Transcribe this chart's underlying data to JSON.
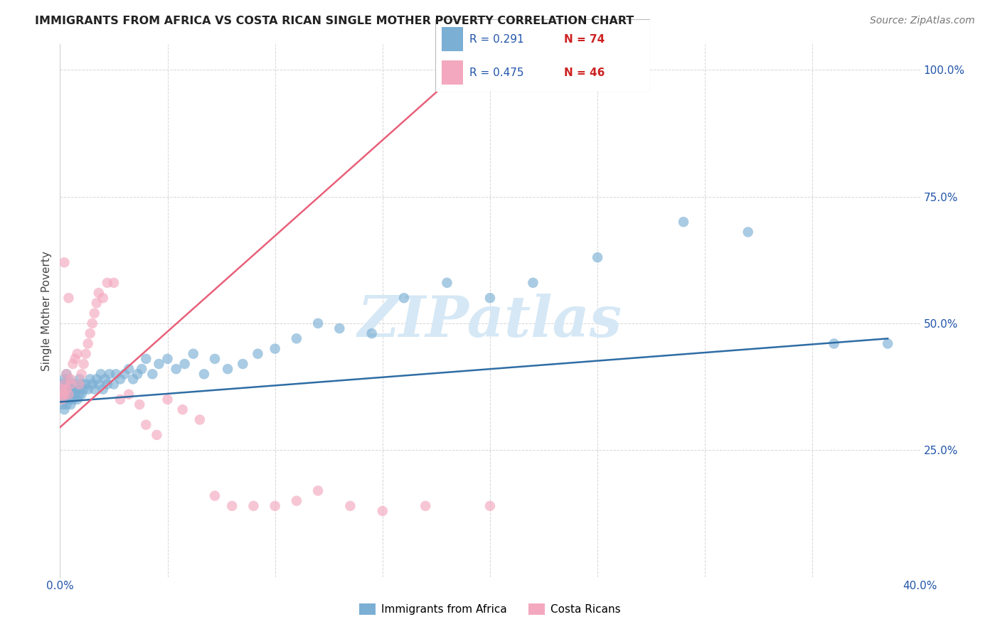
{
  "title": "IMMIGRANTS FROM AFRICA VS COSTA RICAN SINGLE MOTHER POVERTY CORRELATION CHART",
  "source": "Source: ZipAtlas.com",
  "ylabel": "Single Mother Poverty",
  "xlim": [
    0.0,
    0.4
  ],
  "ylim": [
    0.0,
    1.05
  ],
  "r_africa": 0.291,
  "n_africa": 74,
  "r_costa": 0.475,
  "n_costa": 46,
  "africa_color": "#7BAFD4",
  "costa_color": "#F4A8BF",
  "africa_line_color": "#2E6DA4",
  "costa_line_color": "#E8607A",
  "watermark_color": "#D6E8F5",
  "background_color": "#FFFFFF",
  "legend_text_color_r": "#2255AA",
  "legend_text_color_n": "#CC2222",
  "africa_x": [
    0.001,
    0.001,
    0.001,
    0.002,
    0.002,
    0.002,
    0.002,
    0.003,
    0.003,
    0.003,
    0.003,
    0.004,
    0.004,
    0.004,
    0.005,
    0.005,
    0.005,
    0.006,
    0.006,
    0.007,
    0.007,
    0.008,
    0.008,
    0.009,
    0.009,
    0.01,
    0.01,
    0.011,
    0.012,
    0.013,
    0.014,
    0.015,
    0.016,
    0.017,
    0.018,
    0.019,
    0.02,
    0.021,
    0.022,
    0.023,
    0.025,
    0.026,
    0.028,
    0.03,
    0.032,
    0.034,
    0.036,
    0.038,
    0.04,
    0.043,
    0.046,
    0.05,
    0.054,
    0.058,
    0.062,
    0.067,
    0.072,
    0.078,
    0.085,
    0.092,
    0.1,
    0.11,
    0.12,
    0.13,
    0.145,
    0.16,
    0.18,
    0.2,
    0.22,
    0.25,
    0.29,
    0.32,
    0.36,
    0.385
  ],
  "africa_y": [
    0.36,
    0.38,
    0.34,
    0.37,
    0.35,
    0.39,
    0.33,
    0.36,
    0.38,
    0.34,
    0.4,
    0.37,
    0.35,
    0.39,
    0.36,
    0.38,
    0.34,
    0.37,
    0.35,
    0.38,
    0.36,
    0.37,
    0.35,
    0.39,
    0.36,
    0.38,
    0.36,
    0.37,
    0.38,
    0.37,
    0.39,
    0.38,
    0.37,
    0.39,
    0.38,
    0.4,
    0.37,
    0.39,
    0.38,
    0.4,
    0.38,
    0.4,
    0.39,
    0.4,
    0.41,
    0.39,
    0.4,
    0.41,
    0.43,
    0.4,
    0.42,
    0.43,
    0.41,
    0.42,
    0.44,
    0.4,
    0.43,
    0.41,
    0.42,
    0.44,
    0.45,
    0.47,
    0.5,
    0.49,
    0.48,
    0.55,
    0.58,
    0.55,
    0.58,
    0.63,
    0.7,
    0.68,
    0.46,
    0.46
  ],
  "costa_x": [
    0.001,
    0.001,
    0.001,
    0.002,
    0.002,
    0.002,
    0.003,
    0.003,
    0.004,
    0.004,
    0.005,
    0.005,
    0.006,
    0.007,
    0.008,
    0.009,
    0.01,
    0.011,
    0.012,
    0.013,
    0.014,
    0.015,
    0.016,
    0.017,
    0.018,
    0.02,
    0.022,
    0.025,
    0.028,
    0.032,
    0.037,
    0.04,
    0.045,
    0.05,
    0.057,
    0.065,
    0.072,
    0.08,
    0.09,
    0.1,
    0.11,
    0.12,
    0.135,
    0.15,
    0.17,
    0.2
  ],
  "costa_y": [
    0.36,
    0.37,
    0.35,
    0.38,
    0.36,
    0.62,
    0.4,
    0.37,
    0.36,
    0.55,
    0.39,
    0.38,
    0.42,
    0.43,
    0.44,
    0.38,
    0.4,
    0.42,
    0.44,
    0.46,
    0.48,
    0.5,
    0.52,
    0.54,
    0.56,
    0.55,
    0.58,
    0.58,
    0.35,
    0.36,
    0.34,
    0.3,
    0.28,
    0.35,
    0.33,
    0.31,
    0.16,
    0.14,
    0.14,
    0.14,
    0.15,
    0.17,
    0.14,
    0.13,
    0.14,
    0.14
  ],
  "africa_line_x0": 0.0,
  "africa_line_x1": 0.385,
  "africa_line_y0": 0.345,
  "africa_line_y1": 0.47,
  "costa_line_x0": 0.0,
  "costa_line_x1": 0.2,
  "costa_line_y0": 0.295,
  "costa_line_y1": 1.05
}
